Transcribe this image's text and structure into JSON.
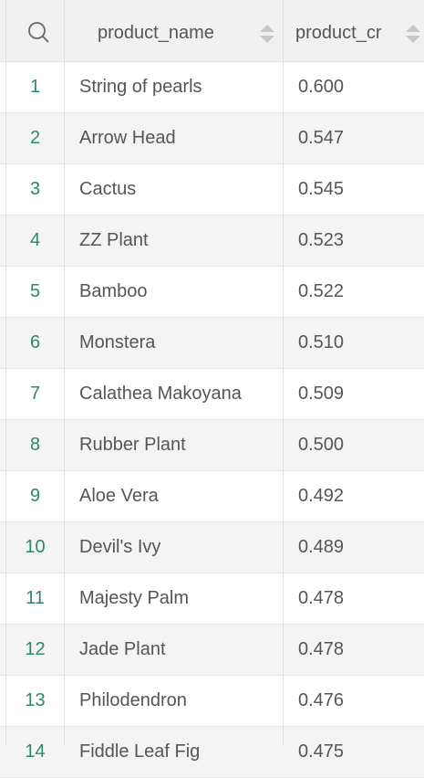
{
  "header": {
    "col_name": "product_name",
    "col_cr": "product_cr"
  },
  "rows": [
    {
      "index": "1",
      "name": "String of pearls",
      "cr": "0.600"
    },
    {
      "index": "2",
      "name": "Arrow Head",
      "cr": "0.547"
    },
    {
      "index": "3",
      "name": "Cactus",
      "cr": "0.545"
    },
    {
      "index": "4",
      "name": "ZZ Plant",
      "cr": "0.523"
    },
    {
      "index": "5",
      "name": "Bamboo",
      "cr": "0.522"
    },
    {
      "index": "6",
      "name": "Monstera",
      "cr": "0.510"
    },
    {
      "index": "7",
      "name": "Calathea Makoyana",
      "cr": "0.509"
    },
    {
      "index": "8",
      "name": "Rubber Plant",
      "cr": "0.500"
    },
    {
      "index": "9",
      "name": "Aloe Vera",
      "cr": "0.492"
    },
    {
      "index": "10",
      "name": "Devil's Ivy",
      "cr": "0.489"
    },
    {
      "index": "11",
      "name": "Majesty Palm",
      "cr": "0.478"
    },
    {
      "index": "12",
      "name": "Jade Plant",
      "cr": "0.478"
    },
    {
      "index": "13",
      "name": "Philodendron",
      "cr": "0.476"
    },
    {
      "index": "14",
      "name": "Fiddle Leaf Fig",
      "cr": "0.475"
    }
  ],
  "colors": {
    "index_text": "#2a8a6e",
    "header_bg": "#f1f1f1",
    "alt_row_bg": "#f4f4f4"
  },
  "icons": {
    "search": "search-icon",
    "sort": "sort-icon"
  }
}
